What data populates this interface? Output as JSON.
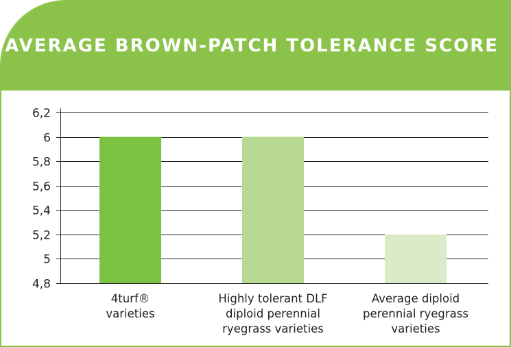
{
  "chart_data": {
    "type": "bar",
    "title": "AVERAGE BROWN-PATCH TOLERANCE SCORE",
    "categories": [
      "4turf® varieties",
      "Highly tolerant DLF diploid perennial ryegrass varieties",
      "Average diploid perennial ryegrass varieties"
    ],
    "category_lines": [
      [
        "4turf®",
        "varieties"
      ],
      [
        "Highly tolerant DLF",
        "diploid perennial",
        "ryegrass varieties"
      ],
      [
        "Average diploid",
        "perennial ryegrass",
        "varieties"
      ]
    ],
    "values": [
      6.0,
      6.0,
      5.2
    ],
    "bar_colors": [
      "#7dc142",
      "#b7d994",
      "#dbebc8"
    ],
    "ylim": [
      4.8,
      6.2
    ],
    "yticks": [
      "4,8",
      "5",
      "5,2",
      "5,4",
      "5,6",
      "5,8",
      "6",
      "6,2"
    ],
    "grid": true,
    "xlabel": "",
    "ylabel": ""
  },
  "colors": {
    "header": "#8bc34a",
    "grid": "#222222"
  }
}
